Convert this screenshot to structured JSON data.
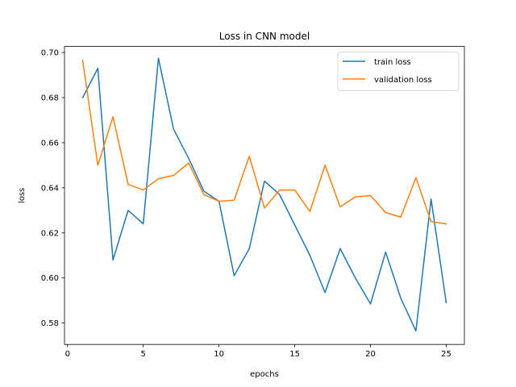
{
  "chart_data": {
    "type": "line",
    "title": "Loss in CNN model",
    "xlabel": "epochs",
    "ylabel": "loss",
    "xlim": [
      -0.2,
      26.2
    ],
    "ylim": [
      0.5705,
      0.7027
    ],
    "xticks": [
      0,
      5,
      10,
      15,
      20,
      25
    ],
    "yticks": [
      0.58,
      0.6,
      0.62,
      0.64,
      0.66,
      0.68,
      0.7
    ],
    "xtick_labels": [
      "0",
      "5",
      "10",
      "15",
      "20",
      "25"
    ],
    "ytick_labels": [
      "0.58",
      "0.60",
      "0.62",
      "0.64",
      "0.66",
      "0.68",
      "0.70"
    ],
    "grid": false,
    "legend_position": "top-right",
    "x": [
      1,
      2,
      3,
      4,
      5,
      6,
      7,
      8,
      9,
      10,
      11,
      12,
      13,
      14,
      15,
      16,
      17,
      18,
      19,
      20,
      21,
      22,
      23,
      24,
      25
    ],
    "series": [
      {
        "name": "train loss",
        "color": "#1f77b4",
        "values": [
          0.68,
          0.693,
          0.608,
          0.63,
          0.624,
          0.6975,
          0.666,
          0.653,
          0.6385,
          0.634,
          0.601,
          0.613,
          0.643,
          0.637,
          0.6235,
          0.61,
          0.5935,
          0.613,
          0.6,
          0.5885,
          0.6115,
          0.591,
          0.5765,
          0.635,
          0.589
        ]
      },
      {
        "name": "validation loss",
        "color": "#ff7f0e",
        "values": [
          0.6965,
          0.65,
          0.6715,
          0.6415,
          0.639,
          0.644,
          0.6455,
          0.651,
          0.637,
          0.634,
          0.6345,
          0.654,
          0.631,
          0.639,
          0.639,
          0.6295,
          0.65,
          0.6315,
          0.636,
          0.6365,
          0.629,
          0.627,
          0.6445,
          0.625,
          0.624
        ]
      }
    ]
  }
}
